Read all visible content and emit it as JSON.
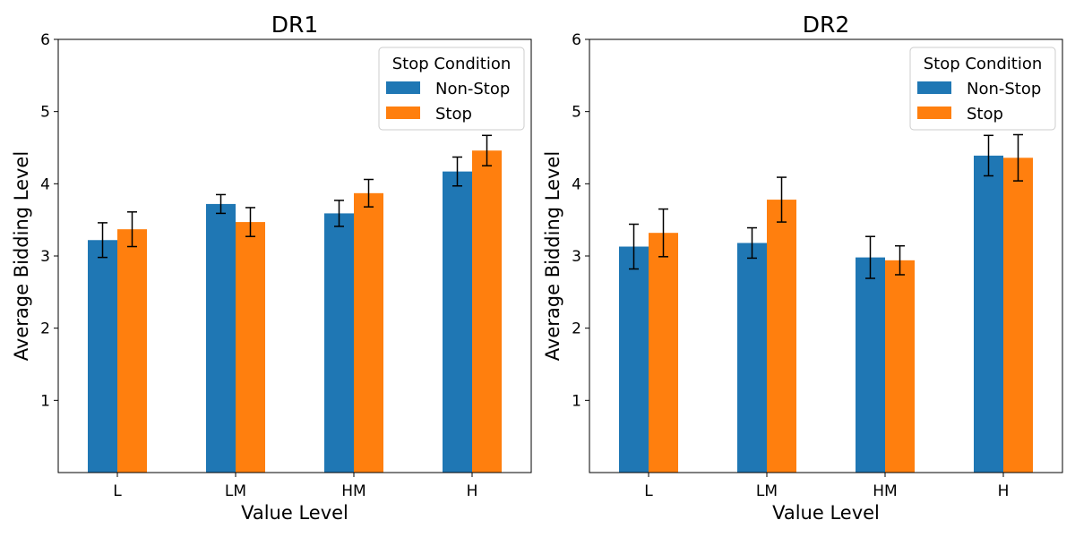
{
  "chart_data": [
    {
      "type": "bar",
      "title": "DR1",
      "xlabel": "Value Level",
      "ylabel": "Average Bidding Level",
      "categories": [
        "L",
        "LM",
        "HM",
        "H"
      ],
      "yticks": [
        1,
        2,
        3,
        4,
        5,
        6
      ],
      "ylim": [
        0,
        6
      ],
      "legend": {
        "title": "Stop Condition",
        "placement": "top-right"
      },
      "series": [
        {
          "name": "Non-Stop",
          "color": "#1f77b4",
          "values": [
            3.22,
            3.72,
            3.59,
            4.17
          ],
          "errors": [
            0.24,
            0.13,
            0.18,
            0.2
          ]
        },
        {
          "name": "Stop",
          "color": "#ff7f0e",
          "values": [
            3.37,
            3.47,
            3.87,
            4.46
          ],
          "errors": [
            0.24,
            0.2,
            0.19,
            0.21
          ]
        }
      ]
    },
    {
      "type": "bar",
      "title": "DR2",
      "xlabel": "Value Level",
      "ylabel": "Average Bidding Level",
      "categories": [
        "L",
        "LM",
        "HM",
        "H"
      ],
      "yticks": [
        1,
        2,
        3,
        4,
        5,
        6
      ],
      "ylim": [
        0,
        6
      ],
      "legend": {
        "title": "Stop Condition",
        "placement": "top-right"
      },
      "series": [
        {
          "name": "Non-Stop",
          "color": "#1f77b4",
          "values": [
            3.13,
            3.18,
            2.98,
            4.39
          ],
          "errors": [
            0.31,
            0.21,
            0.29,
            0.28
          ]
        },
        {
          "name": "Stop",
          "color": "#ff7f0e",
          "values": [
            3.32,
            3.78,
            2.94,
            4.36
          ],
          "errors": [
            0.33,
            0.31,
            0.2,
            0.32
          ]
        }
      ]
    }
  ]
}
